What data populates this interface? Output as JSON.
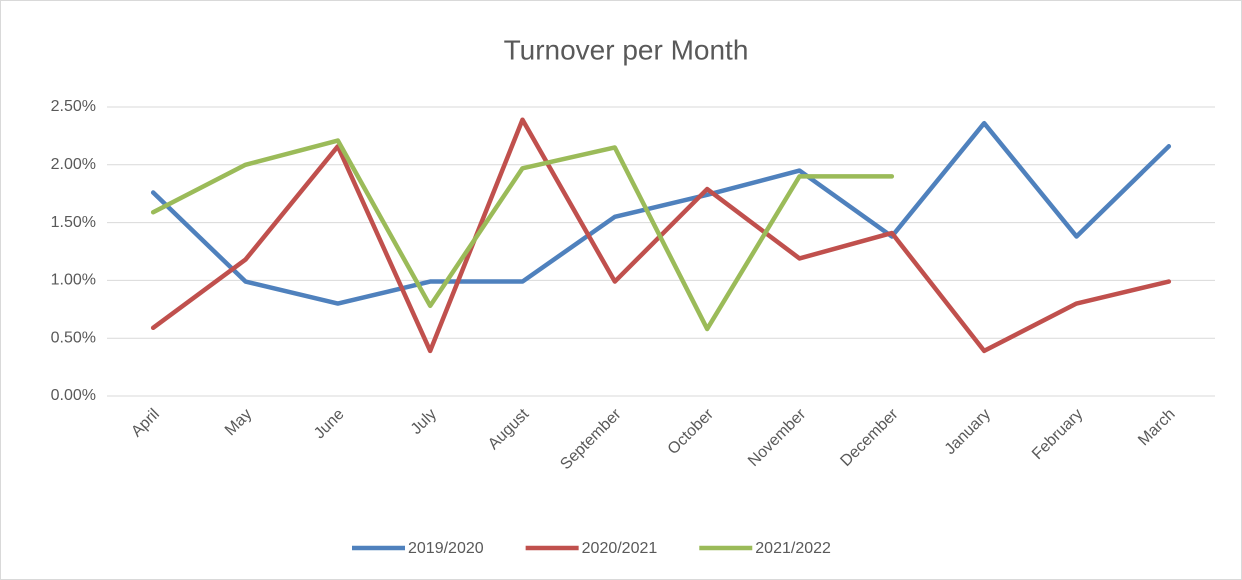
{
  "chart_data": {
    "type": "line",
    "title": "Turnover per Month",
    "categories": [
      "April",
      "May",
      "June",
      "July",
      "August",
      "September",
      "October",
      "November",
      "December",
      "January",
      "February",
      "March"
    ],
    "series": [
      {
        "name": "2019/2020",
        "color": "#4f81bd",
        "values": [
          1.76,
          0.99,
          0.8,
          0.99,
          0.99,
          1.55,
          1.74,
          1.95,
          1.38,
          2.36,
          1.38,
          2.16
        ]
      },
      {
        "name": "2020/2021",
        "color": "#c0504d",
        "values": [
          0.59,
          1.18,
          2.16,
          0.39,
          2.39,
          0.99,
          1.79,
          1.19,
          1.41,
          0.39,
          0.8,
          0.99
        ]
      },
      {
        "name": "2021/2022",
        "color": "#9bbb59",
        "values": [
          1.59,
          2.0,
          2.21,
          0.78,
          1.97,
          2.15,
          0.58,
          1.9,
          1.9,
          null,
          null,
          null
        ]
      }
    ],
    "ylim": [
      0,
      2.5
    ],
    "yticks": [
      {
        "value": 0,
        "label": "0.00%"
      },
      {
        "value": 0.5,
        "label": "0.50%"
      },
      {
        "value": 1,
        "label": "1.00%"
      },
      {
        "value": 1.5,
        "label": "1.50%"
      },
      {
        "value": 2,
        "label": "2.00%"
      },
      {
        "value": 2.5,
        "label": "2.50%"
      }
    ],
    "grid": true,
    "legend": "bottom"
  }
}
